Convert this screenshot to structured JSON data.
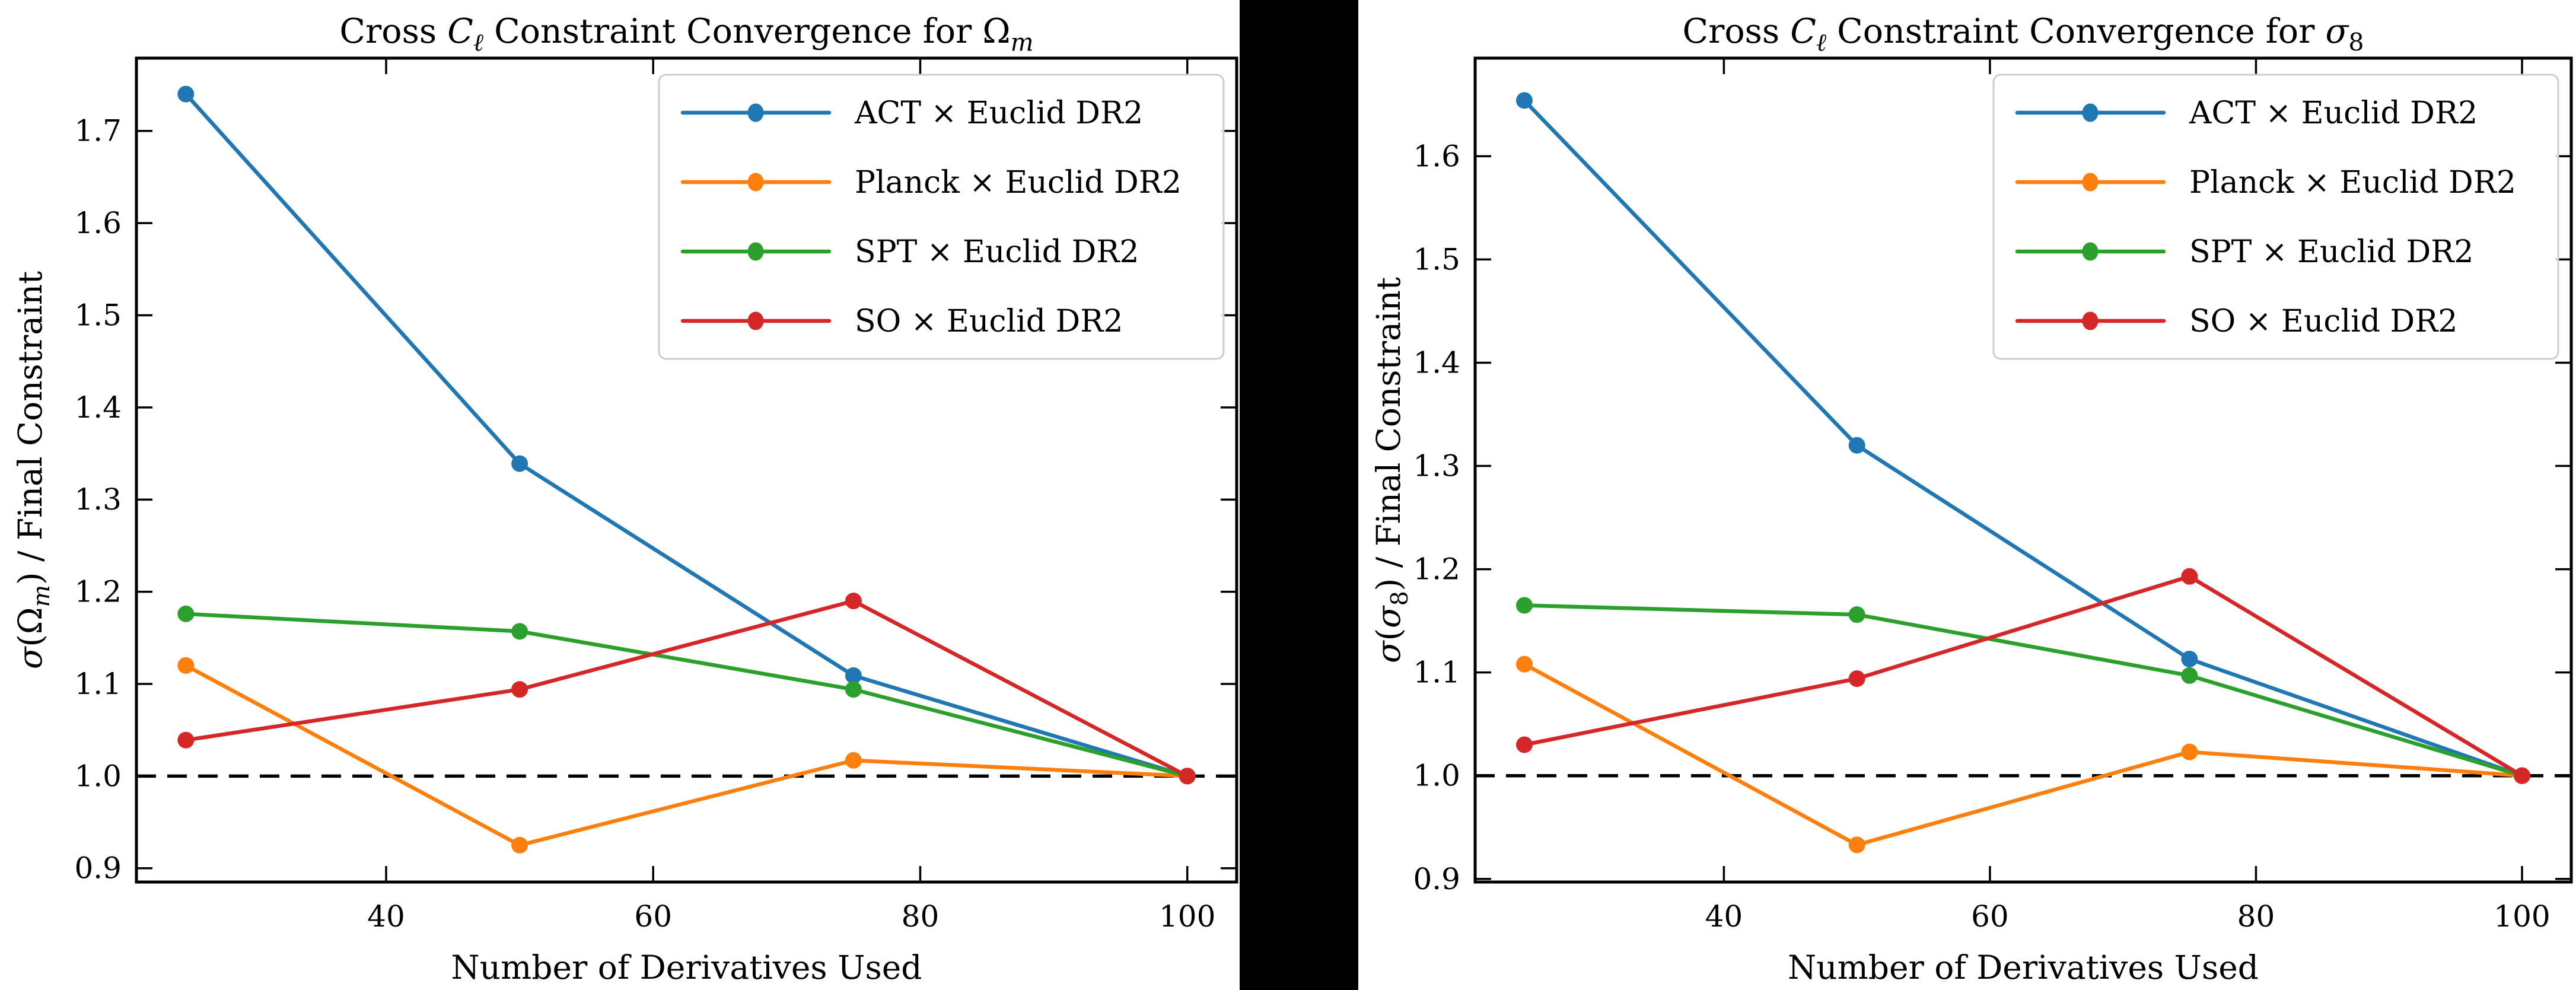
{
  "figure": {
    "background": "#000000",
    "panel_background": "#ffffff",
    "axis_color": "#000000",
    "legend_border_color": "#cccccc"
  },
  "chart_data": [
    {
      "type": "line",
      "title": "Cross Cℓ Constraint Convergence for Ωm",
      "title_parts": [
        [
          "Cross ",
          ""
        ],
        [
          "C",
          "i"
        ],
        [
          "ℓ",
          "is"
        ],
        [
          " Constraint Convergence for ",
          ""
        ],
        [
          "Ω",
          ""
        ],
        [
          "m",
          "is"
        ]
      ],
      "xlabel": "Number of Derivatives Used",
      "ylabel": "σ(Ωm) / Final Constraint",
      "ylabel_parts": [
        [
          "σ",
          "i"
        ],
        [
          "(",
          ""
        ],
        [
          "Ω",
          ""
        ],
        [
          "m",
          "is"
        ],
        [
          ")",
          ""
        ],
        [
          " / Final Constraint",
          ""
        ]
      ],
      "x": [
        25,
        50,
        75,
        100
      ],
      "xticks": [
        40,
        60,
        80,
        100
      ],
      "yticks": [
        0.9,
        1.0,
        1.1,
        1.2,
        1.3,
        1.4,
        1.5,
        1.6,
        1.7
      ],
      "xlim": [
        21.3,
        103.7
      ],
      "ylim": [
        0.885,
        1.779
      ],
      "grid": false,
      "legend_position": "upper right",
      "reference_line_y": 1.0,
      "series": [
        {
          "name": "ACT × Euclid DR2",
          "color": "#1f77b4",
          "values": [
            1.74,
            1.339,
            1.109,
            1.0
          ]
        },
        {
          "name": "Planck × Euclid DR2",
          "color": "#ff7f0e",
          "values": [
            1.12,
            0.925,
            1.017,
            1.0
          ]
        },
        {
          "name": "SPT × Euclid DR2",
          "color": "#2ca02c",
          "values": [
            1.176,
            1.157,
            1.094,
            1.0
          ]
        },
        {
          "name": "SO × Euclid DR2",
          "color": "#d62728",
          "values": [
            1.039,
            1.094,
            1.19,
            1.0
          ]
        }
      ]
    },
    {
      "type": "line",
      "title": "Cross Cℓ Constraint Convergence for σ8",
      "title_parts": [
        [
          "Cross ",
          ""
        ],
        [
          "C",
          "i"
        ],
        [
          "ℓ",
          "is"
        ],
        [
          " Constraint Convergence for ",
          ""
        ],
        [
          "σ",
          "i"
        ],
        [
          "8",
          "s"
        ]
      ],
      "xlabel": "Number of Derivatives Used",
      "ylabel": "σ(σ8) / Final Constraint",
      "ylabel_parts": [
        [
          "σ",
          "i"
        ],
        [
          "(",
          ""
        ],
        [
          "σ",
          "i"
        ],
        [
          "8",
          "s"
        ],
        [
          ")",
          ""
        ],
        [
          " / Final Constraint",
          ""
        ]
      ],
      "x": [
        25,
        50,
        75,
        100
      ],
      "xticks": [
        40,
        60,
        80,
        100
      ],
      "yticks": [
        0.9,
        1.0,
        1.1,
        1.2,
        1.3,
        1.4,
        1.5,
        1.6
      ],
      "xlim": [
        21.3,
        103.7
      ],
      "ylim": [
        0.897,
        1.695
      ],
      "grid": false,
      "legend_position": "upper right",
      "reference_line_y": 1.0,
      "series": [
        {
          "name": "ACT × Euclid DR2",
          "color": "#1f77b4",
          "values": [
            1.654,
            1.32,
            1.113,
            1.0
          ]
        },
        {
          "name": "Planck × Euclid DR2",
          "color": "#ff7f0e",
          "values": [
            1.108,
            0.933,
            1.023,
            1.0
          ]
        },
        {
          "name": "SPT × Euclid DR2",
          "color": "#2ca02c",
          "values": [
            1.165,
            1.156,
            1.097,
            1.0
          ]
        },
        {
          "name": "SO × Euclid DR2",
          "color": "#d62728",
          "values": [
            1.03,
            1.094,
            1.193,
            1.0
          ]
        }
      ]
    }
  ]
}
